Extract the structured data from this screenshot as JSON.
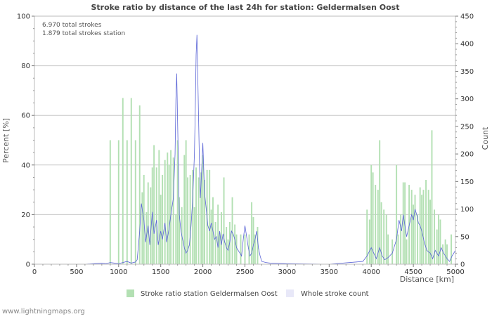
{
  "chart_data": {
    "type": "bar",
    "title": "Stroke ratio by distance of the last 24h for station: Geldermalsen Oost",
    "annotations": [
      "6.970 total strokes",
      "1.879 total strokes station"
    ],
    "xlabel": "Distance   [km]",
    "ylabel_left": "Percent   [%]",
    "ylabel_right": "Count",
    "xlim": [
      0,
      5000
    ],
    "ylim_left": [
      0,
      100
    ],
    "ylim_right": [
      0,
      450
    ],
    "x_ticks": [
      0,
      500,
      1000,
      1500,
      2000,
      2500,
      3000,
      3500,
      4000,
      4500,
      5000
    ],
    "y_left_ticks": [
      0,
      20,
      40,
      60,
      80,
      100
    ],
    "y_right_ticks": [
      0,
      50,
      100,
      150,
      200,
      250,
      300,
      350,
      400,
      450
    ],
    "grid": true,
    "legend": {
      "position": "bottom",
      "bars_label": "Stroke ratio station Geldermalsen Oost",
      "line_label": "Whole stroke count"
    },
    "colors": {
      "bars": "#b3e0b3",
      "line": "#5a64d6",
      "grid": "#c8c8c8",
      "legend_line_swatch": "#e8e8f8"
    },
    "bars": {
      "name": "Stroke ratio station Geldermalsen Oost",
      "axis": "left",
      "x": [
        900,
        1000,
        1050,
        1100,
        1150,
        1200,
        1250,
        1280,
        1300,
        1330,
        1350,
        1380,
        1400,
        1420,
        1450,
        1480,
        1500,
        1520,
        1550,
        1580,
        1600,
        1620,
        1650,
        1680,
        1700,
        1720,
        1750,
        1780,
        1800,
        1820,
        1850,
        1880,
        1900,
        1920,
        1950,
        1980,
        2000,
        2020,
        2050,
        2080,
        2100,
        2120,
        2150,
        2180,
        2200,
        2220,
        2250,
        2280,
        2300,
        2320,
        2350,
        2380,
        2400,
        2450,
        2500,
        2550,
        2580,
        2600,
        2620,
        2650,
        3950,
        3980,
        4000,
        4020,
        4050,
        4080,
        4100,
        4120,
        4150,
        4180,
        4200,
        4250,
        4300,
        4320,
        4350,
        4380,
        4400,
        4420,
        4450,
        4480,
        4500,
        4520,
        4550,
        4580,
        4600,
        4620,
        4650,
        4680,
        4700,
        4720,
        4750,
        4780,
        4800,
        4820,
        4850,
        4880,
        4900,
        4950
      ],
      "values": [
        50,
        50,
        67,
        50,
        67,
        50,
        64,
        29,
        36,
        21,
        33,
        31,
        39,
        48,
        39,
        46,
        28,
        36,
        42,
        45,
        40,
        46,
        43,
        20,
        50,
        27,
        23,
        44,
        50,
        35,
        36,
        38,
        23,
        39,
        35,
        37,
        44,
        34,
        38,
        38,
        22,
        27,
        17,
        24,
        12,
        21,
        35,
        15,
        10,
        17,
        27,
        16,
        12,
        12,
        12,
        12,
        25,
        19,
        12,
        15,
        22,
        18,
        40,
        37,
        32,
        30,
        50,
        25,
        22,
        20,
        12,
        10,
        40,
        12,
        20,
        33,
        33,
        10,
        32,
        30,
        24,
        28,
        20,
        31,
        28,
        30,
        34,
        30,
        26,
        54,
        22,
        14,
        20,
        18,
        8,
        10,
        8,
        12
      ],
      "width_km": 16
    },
    "line": {
      "name": "Whole stroke count",
      "axis": "right",
      "x": [
        0,
        200,
        400,
        600,
        800,
        850,
        900,
        950,
        1000,
        1050,
        1100,
        1150,
        1200,
        1220,
        1250,
        1270,
        1300,
        1320,
        1350,
        1370,
        1400,
        1420,
        1450,
        1470,
        1500,
        1520,
        1550,
        1570,
        1600,
        1620,
        1650,
        1670,
        1680,
        1690,
        1700,
        1710,
        1720,
        1740,
        1760,
        1780,
        1800,
        1820,
        1840,
        1860,
        1880,
        1900,
        1910,
        1920,
        1930,
        1940,
        1950,
        1960,
        1970,
        1980,
        2000,
        2020,
        2040,
        2060,
        2080,
        2100,
        2120,
        2140,
        2160,
        2180,
        2200,
        2220,
        2240,
        2260,
        2280,
        2300,
        2320,
        2340,
        2360,
        2380,
        2400,
        2420,
        2440,
        2460,
        2480,
        2500,
        2520,
        2540,
        2560,
        2580,
        2600,
        2620,
        2640,
        2660,
        2680,
        2700,
        2750,
        2800,
        3000,
        3500,
        3900,
        3950,
        4000,
        4030,
        4060,
        4090,
        4100,
        4130,
        4160,
        4200,
        4250,
        4300,
        4330,
        4360,
        4380,
        4400,
        4420,
        4450,
        4480,
        4500,
        4520,
        4540,
        4560,
        4580,
        4600,
        4630,
        4660,
        4700,
        4730,
        4760,
        4800,
        4830,
        4860,
        4900,
        4930,
        4960,
        5000
      ],
      "values": [
        0,
        0,
        0,
        0,
        2,
        1,
        3,
        2,
        1,
        3,
        5,
        2,
        4,
        8,
        60,
        110,
        80,
        40,
        70,
        35,
        95,
        55,
        80,
        35,
        60,
        45,
        75,
        40,
        65,
        90,
        120,
        200,
        300,
        346,
        260,
        180,
        90,
        60,
        45,
        30,
        20,
        25,
        35,
        70,
        120,
        200,
        280,
        380,
        416,
        340,
        260,
        180,
        120,
        150,
        220,
        130,
        100,
        70,
        60,
        75,
        60,
        45,
        50,
        30,
        60,
        35,
        55,
        40,
        30,
        25,
        40,
        60,
        55,
        45,
        30,
        25,
        20,
        15,
        45,
        70,
        50,
        30,
        15,
        20,
        35,
        45,
        60,
        30,
        15,
        5,
        3,
        2,
        1,
        0,
        5,
        15,
        30,
        20,
        10,
        25,
        30,
        15,
        8,
        12,
        20,
        45,
        80,
        60,
        90,
        70,
        50,
        70,
        90,
        80,
        100,
        90,
        75,
        70,
        60,
        40,
        25,
        20,
        10,
        25,
        15,
        30,
        20,
        10,
        5,
        15,
        25
      ]
    }
  },
  "footer": "www.lightningmaps.org"
}
